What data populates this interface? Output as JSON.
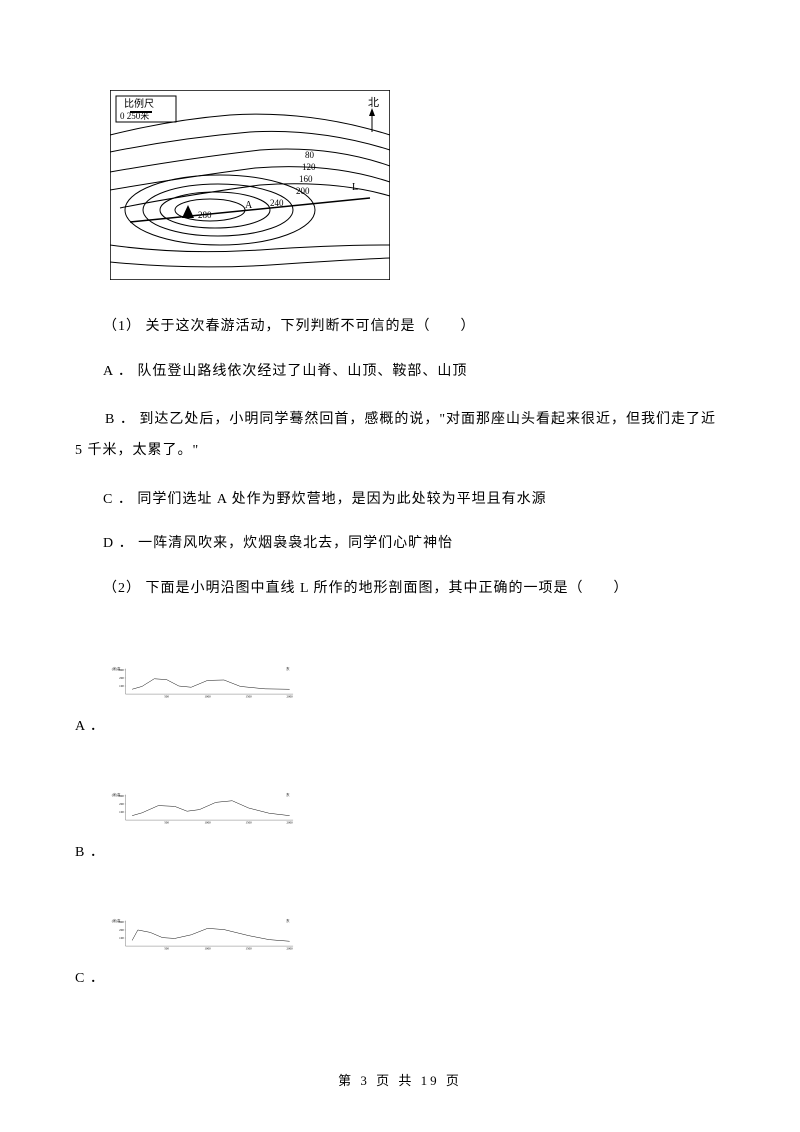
{
  "topo_map": {
    "scale_label": "比例尺",
    "scale_values": "0   250米",
    "north_label": "北",
    "contours": [
      80,
      120,
      160,
      200,
      240
    ],
    "point_label_A": "A",
    "point_label_L": "L",
    "peak": "280",
    "line_color": "#000000",
    "bg_color": "#ffffff"
  },
  "q1": {
    "prompt": "（1） 关于这次春游活动，下列判断不可信的是（　　）",
    "optA": "A ．  队伍登山路线依次经过了山脊、山顶、鞍部、山顶",
    "optB": "B ．  到达乙处后，小明同学蓦然回首，感概的说，\"对面那座山头看起来很近，但我们走了近 5 千米，太累了。\"",
    "optC": "C ．  同学们选址 A 处作为野炊营地，是因为此处较为平坦且有水源",
    "optD": "D ．  一阵清风吹来，炊烟袅袅北去，同学们心旷神怡"
  },
  "q2": {
    "prompt": "（2） 下面是小明沿图中直线 L 所作的地形剖面图，其中正确的一项是（　　）",
    "options": [
      "A ．",
      "B ．",
      "C ．"
    ]
  },
  "profile": {
    "y_label": "(米)高",
    "x_label_west": "西",
    "x_label_east": "东",
    "y_ticks": [
      100,
      200,
      300
    ],
    "x_ticks": [
      500,
      1000,
      1500,
      2000
    ],
    "line_color": "#000000",
    "bg_color": "#ffffff",
    "stroke_width": 1.8,
    "charts": {
      "A": {
        "points": [
          [
            80,
            60
          ],
          [
            200,
            95
          ],
          [
            350,
            190
          ],
          [
            500,
            180
          ],
          [
            650,
            100
          ],
          [
            800,
            85
          ],
          [
            1000,
            170
          ],
          [
            1200,
            175
          ],
          [
            1400,
            95
          ],
          [
            1700,
            65
          ],
          [
            2000,
            60
          ]
        ]
      },
      "B": {
        "points": [
          [
            80,
            55
          ],
          [
            200,
            90
          ],
          [
            400,
            180
          ],
          [
            600,
            170
          ],
          [
            750,
            110
          ],
          [
            900,
            130
          ],
          [
            1100,
            220
          ],
          [
            1300,
            240
          ],
          [
            1500,
            150
          ],
          [
            1750,
            85
          ],
          [
            2000,
            55
          ]
        ]
      },
      "C": {
        "points": [
          [
            80,
            70
          ],
          [
            150,
            200
          ],
          [
            300,
            170
          ],
          [
            450,
            105
          ],
          [
            600,
            95
          ],
          [
            800,
            140
          ],
          [
            1000,
            220
          ],
          [
            1200,
            205
          ],
          [
            1500,
            130
          ],
          [
            1750,
            80
          ],
          [
            2000,
            60
          ]
        ]
      }
    }
  },
  "footer": {
    "text": "第 3 页 共 19 页"
  }
}
